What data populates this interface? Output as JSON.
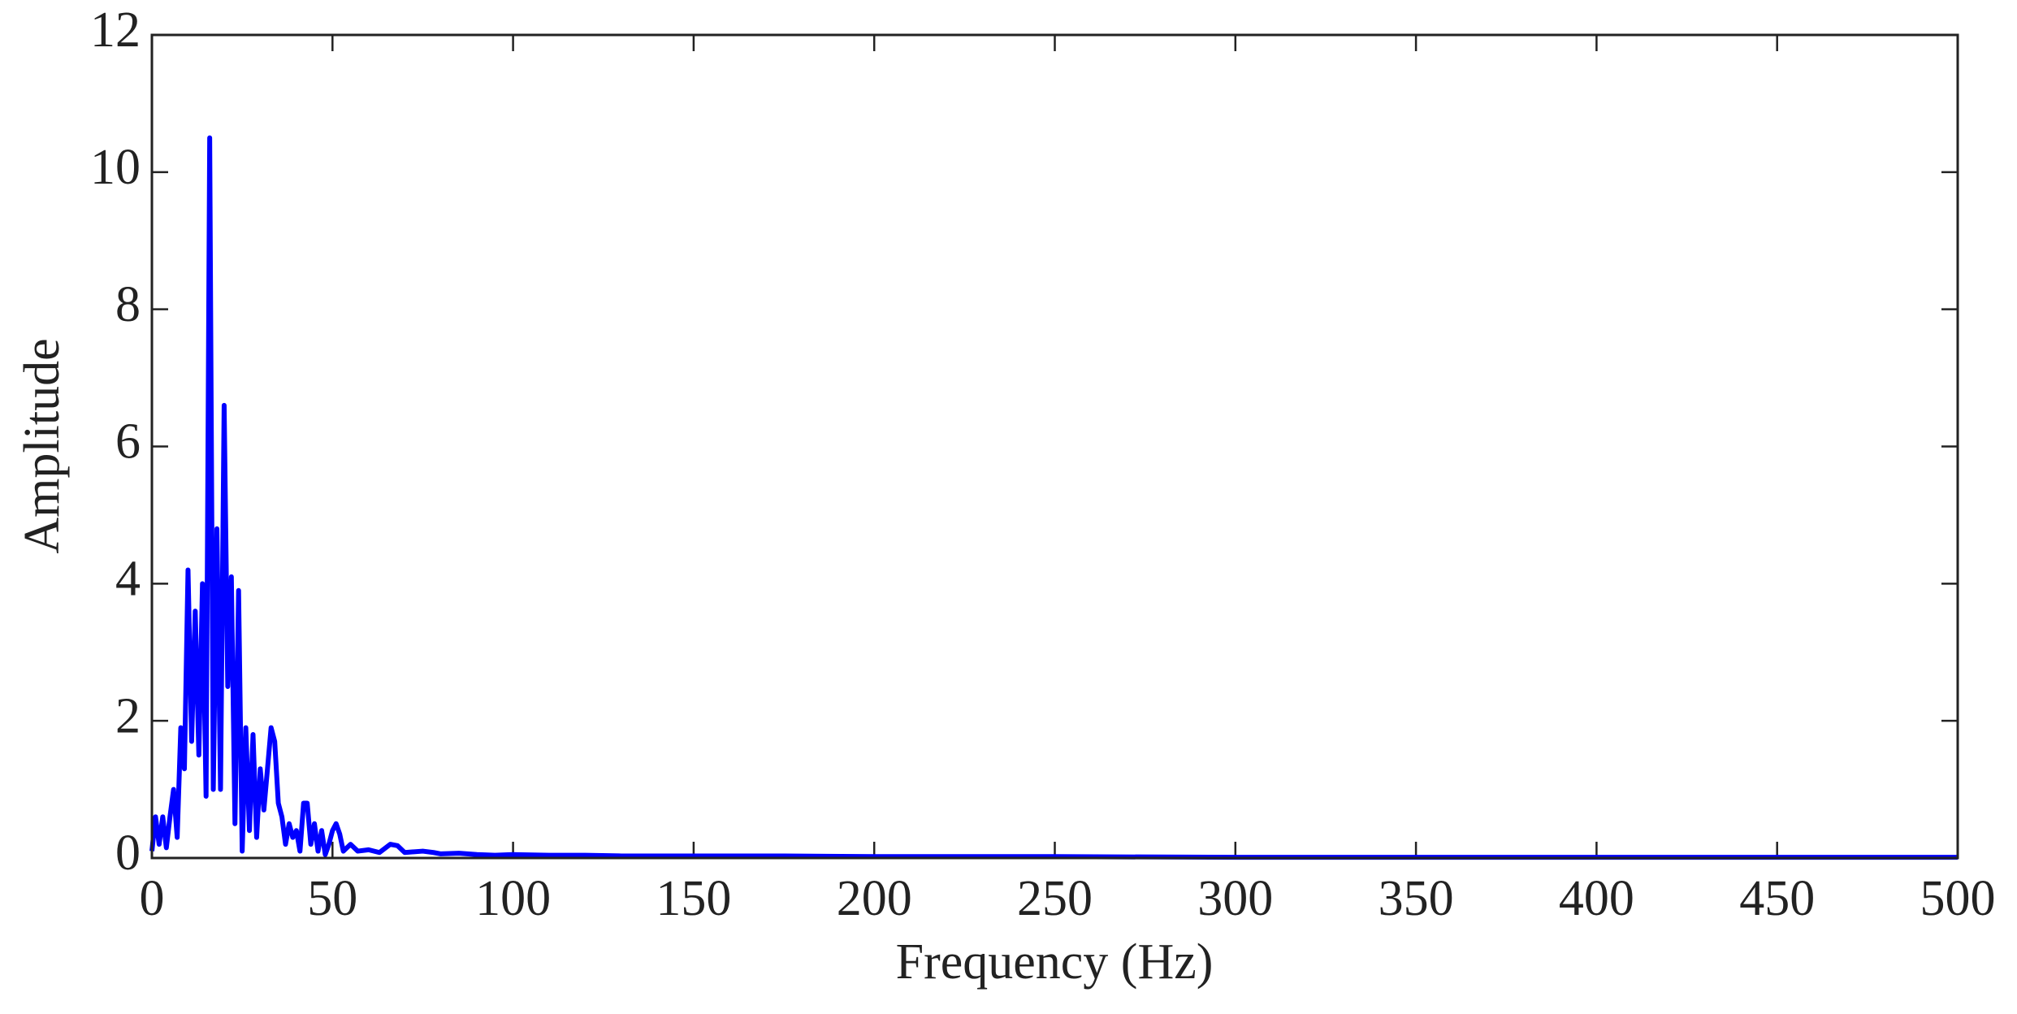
{
  "chart_data": {
    "type": "line",
    "xlabel": "Frequency (Hz)",
    "ylabel": "Amplitude",
    "x": [
      0,
      1,
      2,
      3,
      4,
      5,
      6,
      7,
      8,
      9,
      10,
      11,
      12,
      13,
      14,
      15,
      16,
      17,
      18,
      19,
      20,
      21,
      22,
      23,
      24,
      25,
      26,
      27,
      28,
      29,
      30,
      31,
      32,
      33,
      34,
      35,
      36,
      37,
      38,
      39,
      40,
      41,
      42,
      43,
      44,
      45,
      46,
      47,
      48,
      49,
      50,
      51,
      52,
      53,
      55,
      57,
      60,
      63,
      66,
      68,
      70,
      75,
      78,
      80,
      85,
      90,
      95,
      100,
      110,
      120,
      130,
      150,
      175,
      200,
      250,
      300,
      350,
      400,
      450,
      500
    ],
    "series": [
      {
        "name": "Amplitude",
        "color": "#0000ff",
        "values": [
          0.1,
          0.6,
          0.2,
          0.6,
          0.15,
          0.6,
          1.0,
          0.3,
          1.9,
          1.3,
          4.2,
          1.7,
          3.6,
          1.5,
          4.0,
          0.9,
          10.5,
          1.0,
          4.8,
          1.0,
          6.6,
          2.5,
          4.1,
          0.5,
          3.9,
          0.1,
          1.9,
          0.4,
          1.8,
          0.3,
          1.3,
          0.7,
          1.3,
          1.9,
          1.7,
          0.8,
          0.6,
          0.2,
          0.5,
          0.3,
          0.4,
          0.1,
          0.8,
          0.8,
          0.2,
          0.5,
          0.1,
          0.4,
          0.05,
          0.2,
          0.4,
          0.5,
          0.35,
          0.1,
          0.2,
          0.1,
          0.12,
          0.08,
          0.2,
          0.18,
          0.08,
          0.1,
          0.08,
          0.06,
          0.07,
          0.05,
          0.04,
          0.05,
          0.04,
          0.04,
          0.03,
          0.03,
          0.03,
          0.02,
          0.02,
          0.01,
          0.01,
          0.01,
          0.01,
          0.01
        ]
      }
    ],
    "xlim": [
      0,
      500
    ],
    "xticks": [
      0,
      50,
      100,
      150,
      200,
      250,
      300,
      350,
      400,
      450,
      500
    ],
    "ylim": [
      0,
      12
    ],
    "yticks": [
      0,
      2,
      4,
      6,
      8,
      10,
      12
    ],
    "grid": false
  }
}
